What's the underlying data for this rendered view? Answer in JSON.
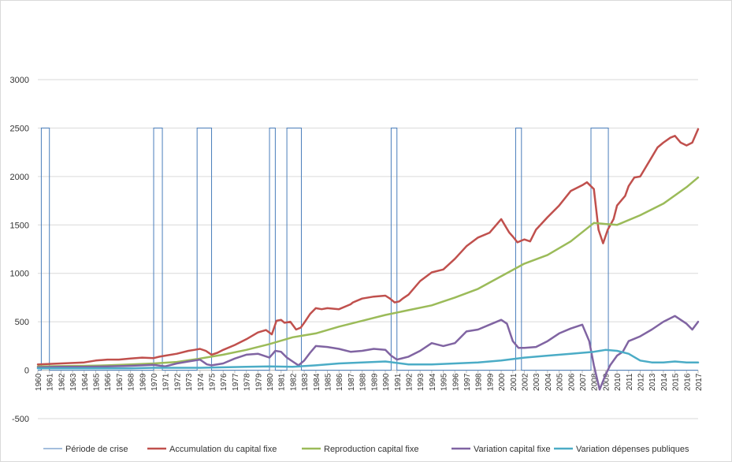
{
  "chart_data": {
    "type": "line",
    "title": "",
    "xlabel": "",
    "ylabel": "",
    "ylim": [
      -500,
      3000
    ],
    "y_ticks": [
      -500,
      0,
      500,
      1000,
      1500,
      2000,
      2500,
      3000
    ],
    "x_range": [
      1960,
      2017
    ],
    "x_tick_labels": [
      "1960",
      "1961",
      "1962",
      "1963",
      "1964",
      "1965",
      "1966",
      "1967",
      "1968",
      "1969",
      "1970",
      "1971",
      "1972",
      "1973",
      "1974",
      "1975",
      "1976",
      "1977",
      "1978",
      "1979",
      "1980",
      "1981",
      "1982",
      "1983",
      "1984",
      "1985",
      "1986",
      "1987",
      "1988",
      "1989",
      "1990",
      "1991",
      "1992",
      "1993",
      "1994",
      "1995",
      "1996",
      "1997",
      "1998",
      "1999",
      "2000",
      "2001",
      "2002",
      "2003",
      "2004",
      "2005",
      "2006",
      "2007",
      "2008",
      "2009",
      "2010",
      "2011",
      "2012",
      "2013",
      "2014",
      "2015",
      "2016",
      "2017"
    ],
    "grid": true,
    "legend_position": "bottom",
    "series": [
      {
        "name": "Période de crise",
        "color": "#4a7ebb",
        "crisis_periods": [
          [
            1960.3,
            1961.0
          ],
          [
            1970.0,
            1970.75
          ],
          [
            1973.75,
            1975.0
          ],
          [
            1980.0,
            1980.5
          ],
          [
            1981.5,
            1982.75
          ],
          [
            1990.5,
            1991.0
          ],
          [
            2001.25,
            2001.75
          ],
          [
            2007.75,
            2009.25
          ]
        ],
        "level": 2500
      },
      {
        "name": "Accumulation du capital fixe",
        "color": "#c0504d",
        "x": [
          1960,
          1961,
          1962,
          1963,
          1964,
          1965,
          1966,
          1967,
          1968,
          1969,
          1970,
          1970.5,
          1971,
          1972,
          1973,
          1973.5,
          1974,
          1974.5,
          1975,
          1975.5,
          1976,
          1977,
          1978,
          1979,
          1979.7,
          1980.2,
          1980.6,
          1981,
          1981.3,
          1981.8,
          1982.3,
          1982.7,
          1983,
          1983.5,
          1984,
          1984.5,
          1985,
          1986,
          1987,
          1987.2,
          1988,
          1989,
          1990,
          1990.4,
          1990.8,
          1991.2,
          1991.5,
          1992,
          1993,
          1994,
          1995,
          1996,
          1997,
          1998,
          1999,
          2000,
          2000.3,
          2000.7,
          2001,
          2001.4,
          2001.8,
          2002,
          2002.5,
          2003,
          2004,
          2005,
          2006,
          2007,
          2007.4,
          2008,
          2008.4,
          2008.8,
          2009.2,
          2009.7,
          2010,
          2010.7,
          2011,
          2011.5,
          2012,
          2013,
          2013.5,
          2014,
          2014.6,
          2015,
          2015.5,
          2016,
          2016.5,
          2017
        ],
        "values": [
          60,
          65,
          70,
          75,
          80,
          100,
          110,
          110,
          120,
          130,
          125,
          140,
          150,
          170,
          200,
          210,
          220,
          200,
          160,
          180,
          210,
          260,
          320,
          390,
          415,
          370,
          510,
          520,
          490,
          500,
          420,
          440,
          490,
          580,
          640,
          630,
          640,
          630,
          680,
          700,
          740,
          760,
          770,
          740,
          700,
          710,
          740,
          780,
          920,
          1010,
          1040,
          1150,
          1280,
          1370,
          1420,
          1560,
          1500,
          1420,
          1380,
          1320,
          1340,
          1350,
          1330,
          1450,
          1580,
          1700,
          1850,
          1910,
          1940,
          1870,
          1450,
          1310,
          1450,
          1560,
          1700,
          1800,
          1900,
          1990,
          2000,
          2200,
          2300,
          2350,
          2400,
          2420,
          2350,
          2320,
          2350,
          2490
        ]
      },
      {
        "name": "Reproduction capital fixe",
        "color": "#9bbb59",
        "x": [
          1960,
          1962,
          1964,
          1966,
          1968,
          1970,
          1972,
          1974,
          1976,
          1978,
          1980,
          1982,
          1984,
          1986,
          1988,
          1990,
          1992,
          1994,
          1996,
          1998,
          2000,
          2002,
          2004,
          2006,
          2008,
          2009,
          2010,
          2012,
          2014,
          2016,
          2017
        ],
        "values": [
          40,
          42,
          45,
          50,
          60,
          70,
          85,
          120,
          160,
          210,
          270,
          340,
          380,
          450,
          510,
          570,
          620,
          670,
          750,
          840,
          970,
          1100,
          1190,
          1330,
          1520,
          1510,
          1500,
          1600,
          1720,
          1890,
          1990
        ]
      },
      {
        "name": "Variation capital fixe",
        "color": "#8064a2",
        "x": [
          1960,
          1962,
          1964,
          1966,
          1968,
          1970,
          1971,
          1972,
          1973,
          1974,
          1974.6,
          1975,
          1976,
          1977,
          1978,
          1979,
          1980,
          1980.5,
          1981,
          1981.5,
          1982,
          1982.5,
          1983,
          1983.5,
          1984,
          1985,
          1986,
          1987,
          1988,
          1989,
          1990,
          1990.5,
          1991,
          1992,
          1993,
          1994,
          1995,
          1996,
          1997,
          1998,
          1999,
          2000,
          2000.5,
          2001,
          2001.5,
          2002,
          2003,
          2004,
          2005,
          2006,
          2007,
          2007.6,
          2008,
          2008.5,
          2009,
          2009.4,
          2010,
          2010.5,
          2011,
          2012,
          2013,
          2014,
          2015,
          2016,
          2016.5,
          2017
        ],
        "values": [
          30,
          35,
          35,
          40,
          45,
          55,
          40,
          70,
          90,
          110,
          60,
          50,
          70,
          120,
          160,
          170,
          130,
          200,
          190,
          130,
          90,
          50,
          100,
          180,
          250,
          240,
          220,
          190,
          200,
          220,
          210,
          150,
          110,
          140,
          200,
          280,
          250,
          280,
          400,
          420,
          470,
          520,
          480,
          300,
          230,
          230,
          240,
          300,
          380,
          430,
          470,
          300,
          50,
          -200,
          -50,
          50,
          150,
          190,
          300,
          350,
          420,
          500,
          560,
          480,
          420,
          500
        ]
      },
      {
        "name": "Variation dépenses publiques",
        "color": "#4bacc6",
        "x": [
          1960,
          1962,
          1964,
          1966,
          1968,
          1970,
          1972,
          1974,
          1976,
          1978,
          1980,
          1982,
          1984,
          1986,
          1988,
          1990,
          1992,
          1994,
          1996,
          1998,
          2000,
          2002,
          2004,
          2006,
          2008,
          2009,
          2010,
          2011,
          2012,
          2013,
          2014,
          2015,
          2016,
          2017
        ],
        "values": [
          20,
          20,
          20,
          20,
          20,
          25,
          25,
          25,
          30,
          35,
          40,
          35,
          50,
          70,
          80,
          90,
          60,
          60,
          70,
          80,
          100,
          130,
          150,
          170,
          190,
          210,
          200,
          170,
          100,
          80,
          80,
          90,
          80,
          80
        ]
      }
    ]
  }
}
